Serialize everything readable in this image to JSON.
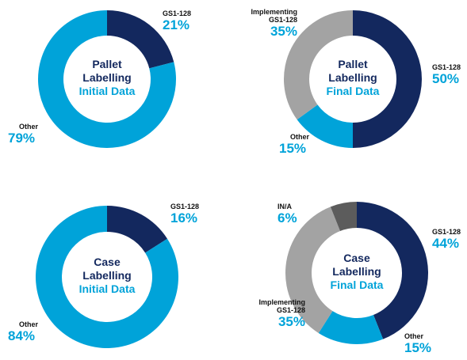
{
  "chart_data": [
    {
      "type": "pie",
      "title": "Pallet Labelling",
      "subtitle": "Initial Data",
      "categories": [
        "GS1-128",
        "Other"
      ],
      "values": [
        21,
        79
      ],
      "value_labels": [
        "21%",
        "79%"
      ],
      "colors": [
        "#13285e",
        "#00a3d9"
      ]
    },
    {
      "type": "pie",
      "title": "Pallet Labelling",
      "subtitle": "Final Data",
      "categories": [
        "GS1-128",
        "Other",
        "Implementing GS1-128"
      ],
      "values": [
        50,
        15,
        35
      ],
      "value_labels": [
        "50%",
        "15%",
        "35%"
      ],
      "colors": [
        "#13285e",
        "#00a3d9",
        "#a3a3a3"
      ]
    },
    {
      "type": "pie",
      "title": "Case Labelling",
      "subtitle": "Initial Data",
      "categories": [
        "GS1-128",
        "Other"
      ],
      "values": [
        16,
        84
      ],
      "value_labels": [
        "16%",
        "84%"
      ],
      "colors": [
        "#13285e",
        "#00a3d9"
      ]
    },
    {
      "type": "pie",
      "title": "Case Labelling",
      "subtitle": "Final Data",
      "categories": [
        "GS1-128",
        "Other",
        "Implementing GS1-128",
        "IN/A"
      ],
      "values": [
        44,
        15,
        35,
        6
      ],
      "value_labels": [
        "44%",
        "15%",
        "35%",
        "6%"
      ],
      "colors": [
        "#13285e",
        "#00a3d9",
        "#a3a3a3",
        "#5c5c5c"
      ]
    }
  ]
}
